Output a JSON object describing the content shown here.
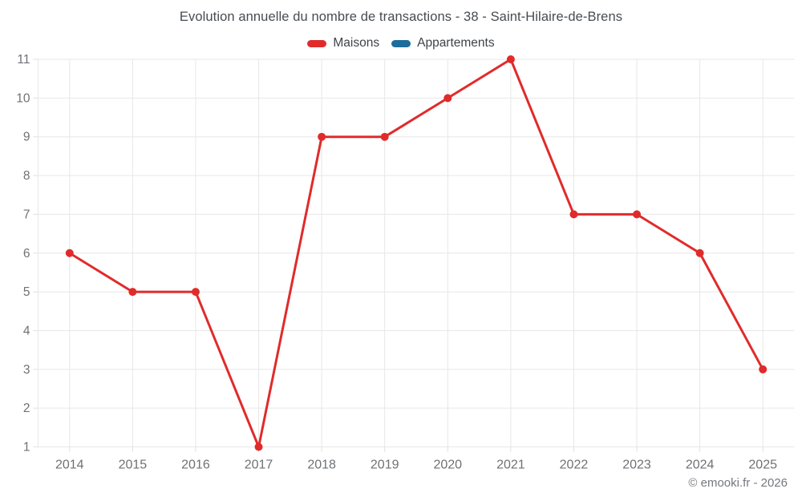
{
  "chart_data": {
    "type": "line",
    "title": "Evolution annuelle du nombre de transactions - 38 - Saint-Hilaire-de-Brens",
    "categories": [
      "2014",
      "2015",
      "2016",
      "2017",
      "2018",
      "2019",
      "2020",
      "2021",
      "2022",
      "2023",
      "2024",
      "2025"
    ],
    "series": [
      {
        "name": "Maisons",
        "color": "#e02b2b",
        "values": [
          6,
          5,
          5,
          1,
          9,
          9,
          10,
          11,
          7,
          7,
          6,
          3
        ]
      },
      {
        "name": "Appartements",
        "color": "#1c6d9c",
        "values": []
      }
    ],
    "xlabel": "",
    "ylabel": "",
    "ylim": [
      1,
      11
    ],
    "y_ticks": [
      1,
      2,
      3,
      4,
      5,
      6,
      7,
      8,
      9,
      10,
      11
    ],
    "grid": true,
    "legend_position": "top"
  },
  "footer": {
    "credit": "© emooki.fr - 2026"
  },
  "colors": {
    "grid": "#e7e7e7",
    "tick": "#e0e0e0",
    "axis_label": "#6e7175",
    "title_text": "#474c51",
    "footer_text": "#75787c",
    "background": "#ffffff"
  }
}
